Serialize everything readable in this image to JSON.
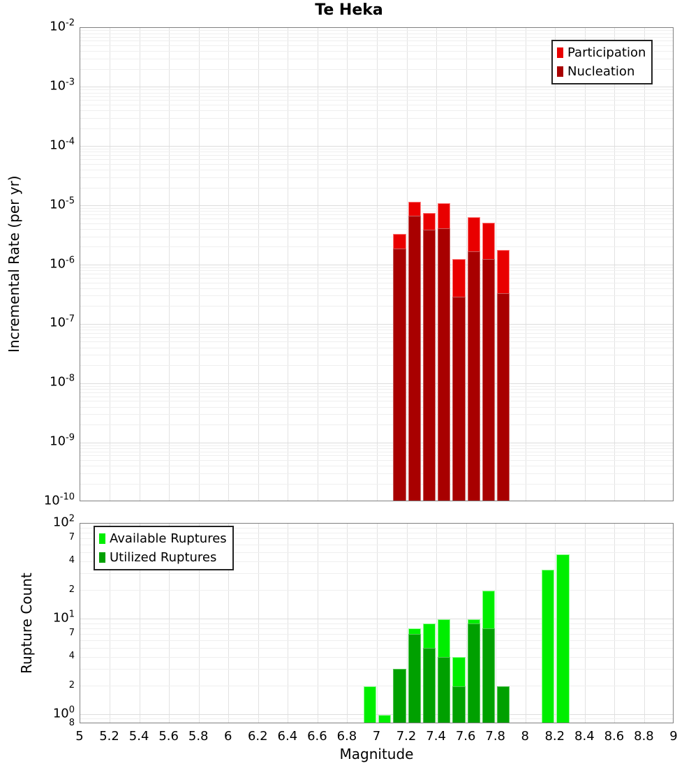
{
  "title": "Te Heka",
  "axes": {
    "x_label": "Magnitude",
    "x_tick_labels": [
      "5",
      "5.2",
      "5.4",
      "5.6",
      "5.8",
      "6",
      "6.2",
      "6.4",
      "6.6",
      "6.8",
      "7",
      "7.2",
      "7.4",
      "7.6",
      "7.8",
      "8",
      "8.2",
      "8.4",
      "8.6",
      "8.8",
      "9"
    ]
  },
  "colors": {
    "participation": "#e90000",
    "participation_outline": "#ff8080",
    "nucleation": "#a80000",
    "nucleation_outline": "#c86060",
    "available": "#00ee00",
    "available_outline": "#90ff90",
    "utilized": "#00a000",
    "utilized_outline": "#55c855",
    "grid_minor": "#efefef",
    "grid_major": "#dddddd",
    "grid_vertical": "#e2e2e2",
    "plot_border": "#7f7f7f"
  },
  "chart_data": [
    {
      "type": "bar",
      "title": "Te Heka",
      "ylabel": "Incremental Rate (per yr)",
      "xlabel": "",
      "x_range": [
        5,
        9
      ],
      "y_range": [
        1e-10,
        0.01
      ],
      "y_scale": "log",
      "grid": true,
      "legend_position": "top-right",
      "bin_width": 0.1,
      "bar_fill_fraction": 0.86,
      "categories": [
        7.15,
        7.25,
        7.35,
        7.45,
        7.55,
        7.65,
        7.75,
        7.85
      ],
      "series": [
        {
          "name": "Participation",
          "color": "#e90000",
          "outline": "#ff8080",
          "values": [
            3.3e-06,
            1.15e-05,
            7.6e-06,
            1.1e-05,
            1.25e-06,
            6.4e-06,
            5.2e-06,
            1.8e-06
          ]
        },
        {
          "name": "Nucleation",
          "color": "#a80000",
          "outline": "#c86060",
          "values": [
            1.9e-06,
            6.7e-06,
            3.9e-06,
            4.2e-06,
            2.9e-07,
            1.7e-06,
            1.25e-06,
            3.3e-07
          ]
        }
      ],
      "y_tick_exponents": [
        -2,
        -3,
        -4,
        -5,
        -6,
        -7,
        -8,
        -9,
        -10
      ],
      "y_minor_tick_labels": []
    },
    {
      "type": "bar",
      "title": "",
      "ylabel": "Rupture Count",
      "xlabel": "Magnitude",
      "x_range": [
        5,
        9
      ],
      "y_range": [
        0.8,
        100
      ],
      "y_scale": "log",
      "grid": true,
      "legend_position": "top-left",
      "bin_width": 0.1,
      "bar_fill_fraction": 0.86,
      "categories": [
        6.95,
        7.05,
        7.15,
        7.25,
        7.35,
        7.45,
        7.55,
        7.65,
        7.75,
        7.85,
        8.15,
        8.25
      ],
      "series": [
        {
          "name": "Available Ruptures",
          "color": "#00ee00",
          "outline": "#90ff90",
          "values": [
            2,
            1,
            3,
            8,
            9,
            10,
            4,
            10,
            20,
            2,
            33,
            48
          ]
        },
        {
          "name": "Utilized Ruptures",
          "color": "#00a000",
          "outline": "#55c855",
          "values": [
            0,
            0,
            3,
            7,
            5,
            4,
            2,
            9,
            8,
            2,
            0,
            0
          ]
        }
      ],
      "y_tick_exponents": [
        2,
        1,
        0
      ],
      "y_minor_tick_labels": [
        {
          "value": 70,
          "label": "7"
        },
        {
          "value": 40,
          "label": "4"
        },
        {
          "value": 20,
          "label": "2"
        },
        {
          "value": 7,
          "label": "7"
        },
        {
          "value": 4,
          "label": "4"
        },
        {
          "value": 2,
          "label": "2"
        },
        {
          "value": 0.8,
          "label": "8"
        }
      ]
    }
  ]
}
